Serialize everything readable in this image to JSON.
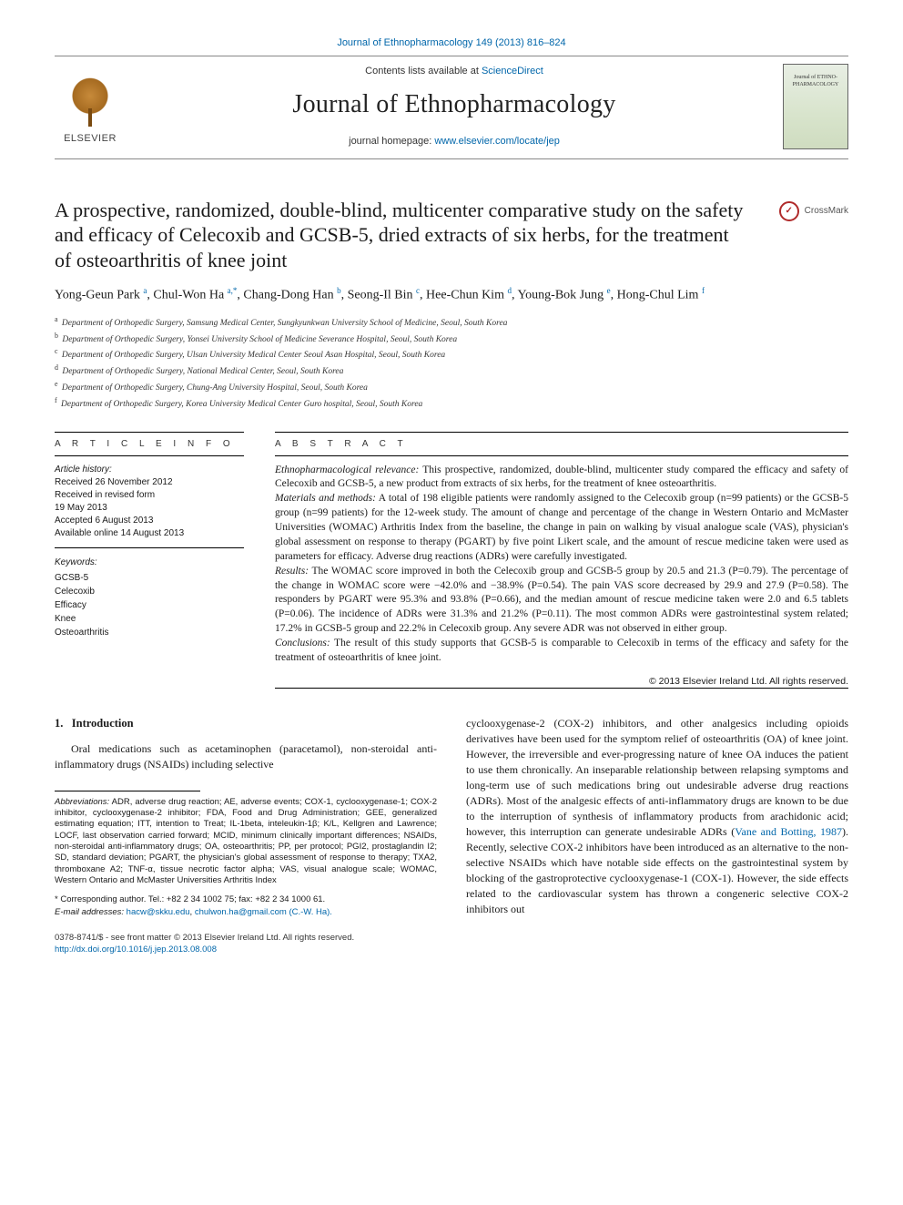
{
  "header": {
    "citation_link": "Journal of Ethnopharmacology 149 (2013) 816–824",
    "contents_prefix": "Contents lists available at ",
    "contents_link": "ScienceDirect",
    "journal_title": "Journal of Ethnopharmacology",
    "homepage_prefix": "journal homepage: ",
    "homepage_url": "www.elsevier.com/locate/jep",
    "elsevier_word": "ELSEVIER",
    "cover_text": "Journal of ETHNO-PHARMACOLOGY",
    "crossmark_label": "CrossMark",
    "crossmark_glyph": "✓"
  },
  "article": {
    "title": "A prospective, randomized, double-blind, multicenter comparative study on the safety and efficacy of Celecoxib and GCSB-5, dried extracts of six herbs, for the treatment of osteoarthritis of knee joint",
    "authors_html": "Yong-Geun Park <sup>a</sup>, Chul-Won Ha <sup>a,*</sup>, Chang-Dong Han <sup>b</sup>, Seong-Il Bin <sup>c</sup>, Hee-Chun Kim <sup>d</sup>, Young-Bok Jung <sup>e</sup>, Hong-Chul Lim <sup>f</sup>",
    "affiliations": [
      {
        "sup": "a",
        "text": "Department of Orthopedic Surgery, Samsung Medical Center, Sungkyunkwan University School of Medicine, Seoul, South Korea"
      },
      {
        "sup": "b",
        "text": "Department of Orthopedic Surgery, Yonsei University School of Medicine Severance Hospital, Seoul, South Korea"
      },
      {
        "sup": "c",
        "text": "Department of Orthopedic Surgery, Ulsan University Medical Center Seoul Asan Hospital, Seoul, South Korea"
      },
      {
        "sup": "d",
        "text": "Department of Orthopedic Surgery, National Medical Center, Seoul, South Korea"
      },
      {
        "sup": "e",
        "text": "Department of Orthopedic Surgery, Chung-Ang University Hospital, Seoul, South Korea"
      },
      {
        "sup": "f",
        "text": "Department of Orthopedic Surgery, Korea University Medical Center Guro hospital, Seoul, South Korea"
      }
    ]
  },
  "info": {
    "heading": "A R T I C L E  I N F O",
    "history_label": "Article history:",
    "history": [
      "Received 26 November 2012",
      "Received in revised form",
      "19 May 2013",
      "Accepted 6 August 2013",
      "Available online 14 August 2013"
    ],
    "keywords_label": "Keywords:",
    "keywords": [
      "GCSB-5",
      "Celecoxib",
      "Efficacy",
      "Knee",
      "Osteoarthritis"
    ]
  },
  "abstract": {
    "heading": "A B S T R A C T",
    "segments": [
      {
        "label": "Ethnopharmacological relevance:",
        "text": " This prospective, randomized, double-blind, multicenter study compared the efficacy and safety of Celecoxib and GCSB-5, a new product from extracts of six herbs, for the treatment of knee osteoarthritis."
      },
      {
        "label": "Materials and methods:",
        "text": " A total of 198 eligible patients were randomly assigned to the Celecoxib group (n=99 patients) or the GCSB-5 group (n=99 patients) for the 12-week study. The amount of change and percentage of the change in Western Ontario and McMaster Universities (WOMAC) Arthritis Index from the baseline, the change in pain on walking by visual analogue scale (VAS), physician's global assessment on response to therapy (PGART) by five point Likert scale, and the amount of rescue medicine taken were used as parameters for efficacy. Adverse drug reactions (ADRs) were carefully investigated."
      },
      {
        "label": "Results:",
        "text": " The WOMAC score improved in both the Celecoxib group and GCSB-5 group by 20.5 and 21.3 (P=0.79). The percentage of the change in WOMAC score were −42.0% and −38.9% (P=0.54). The pain VAS score decreased by 29.9 and 27.9 (P=0.58). The responders by PGART were 95.3% and 93.8% (P=0.66), and the median amount of rescue medicine taken were 2.0 and 6.5 tablets (P=0.06). The incidence of ADRs were 31.3% and 21.2% (P=0.11). The most common ADRs were gastrointestinal system related; 17.2% in GCSB-5 group and 22.2% in Celecoxib group. Any severe ADR was not observed in either group."
      },
      {
        "label": "Conclusions:",
        "text": " The result of this study supports that GCSB-5 is comparable to Celecoxib in terms of the efficacy and safety for the treatment of osteoarthritis of knee joint."
      }
    ],
    "copyright": "© 2013 Elsevier Ireland Ltd. All rights reserved."
  },
  "body": {
    "section_no": "1.",
    "section_title": "Introduction",
    "left_para": "Oral medications such as acetaminophen (paracetamol), non-steroidal anti-inflammatory drugs (NSAIDs) including selective",
    "right_para_1": "cyclooxygenase-2 (COX-2) inhibitors, and other analgesics including opioids derivatives have been used for the symptom relief of osteoarthritis (OA) of knee joint. However, the irreversible and ever-progressing nature of knee OA induces the patient to use them chronically. An inseparable relationship between relapsing symptoms and long-term use of such medications bring out undesirable adverse drug reactions (ADRs). Most of the analgesic effects of anti-inflammatory drugs are known to be due to the interruption of synthesis of inflammatory products from arachidonic acid; however, this interruption can generate undesirable ADRs (",
    "right_ref": "Vane and Botting, 1987",
    "right_para_2": "). Recently, selective COX-2 inhibitors have been introduced as an alternative to the non-selective NSAIDs which have notable side effects on the gastrointestinal system by blocking of the gastroprotective cyclooxygenase-1 (COX-1). However, the side effects related to the cardiovascular system has thrown a congeneric selective COX-2 inhibitors out"
  },
  "footnotes": {
    "abbr_label": "Abbreviations:",
    "abbr_text": " ADR, adverse drug reaction; AE, adverse events; COX-1, cyclooxygenase-1; COX-2 inhibitor, cyclooxygenase-2 inhibitor; FDA, Food and Drug Administration; GEE, generalized estimating equation; ITT, intention to Treat; IL-1beta, inteleukin-1β; K/L, Kellgren and Lawrence; LOCF, last observation carried forward; MCID, minimum clinically important differences; NSAIDs, non-steroidal anti-inflammatory drugs; OA, osteoarthritis; PP, per protocol; PGI2, prostaglandin I2; SD, standard deviation; PGART, the physician's global assessment of response to therapy; TXA2, thromboxane A2; TNF-α, tissue necrotic factor alpha; VAS, visual analogue scale; WOMAC, Western Ontario and McMaster Universities Arthritis Index",
    "corr_symbol": "*",
    "corr_text": "Corresponding author. Tel.: +82 2 34 1002 75; fax: +82 2 34 1000 61.",
    "email_label": "E-mail addresses:",
    "email1": "hacw@skku.edu",
    "email2": "chulwon.ha@gmail.com (C.-W. Ha)."
  },
  "footer": {
    "issn_line": "0378-8741/$ - see front matter © 2013 Elsevier Ireland Ltd. All rights reserved.",
    "doi": "http://dx.doi.org/10.1016/j.jep.2013.08.008"
  },
  "colors": {
    "link": "#0066aa",
    "text": "#1a1a1a",
    "rule": "#000000",
    "elsevier_orange": "#c78a3a",
    "crossmark_red": "#b02a2a"
  }
}
